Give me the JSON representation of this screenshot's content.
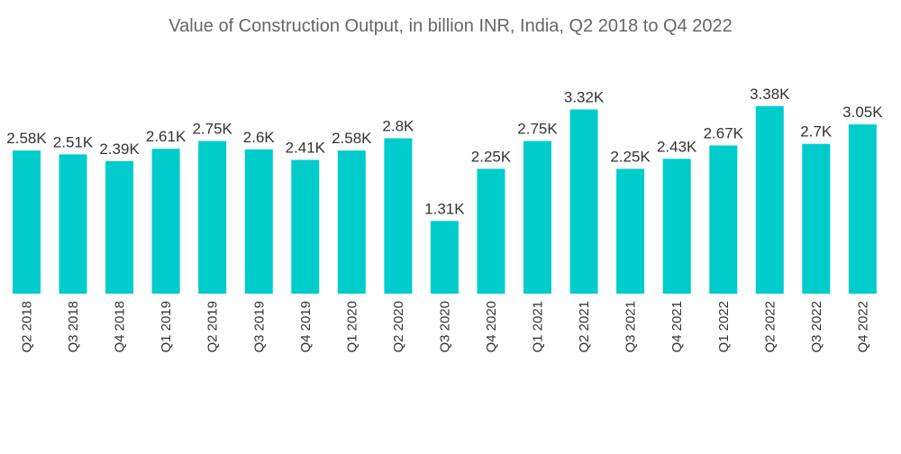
{
  "chart_data": {
    "type": "bar",
    "title": "Value of Construction Output, in billion INR, India, Q2 2018 to Q4 2022",
    "xlabel": "",
    "ylabel": "",
    "ylim": [
      0,
      3.6
    ],
    "grid": false,
    "bar_color": "#00cccc",
    "categories": [
      "Q2 2018",
      "Q3 2018",
      "Q4 2018",
      "Q1 2019",
      "Q2 2019",
      "Q3 2019",
      "Q4 2019",
      "Q1 2020",
      "Q2 2020",
      "Q3 2020",
      "Q4 2020",
      "Q1 2021",
      "Q2 2021",
      "Q3 2021",
      "Q4 2021",
      "Q1 2022",
      "Q2 2022",
      "Q3 2022",
      "Q4 2022"
    ],
    "values": [
      2.58,
      2.51,
      2.39,
      2.61,
      2.75,
      2.6,
      2.41,
      2.58,
      2.8,
      1.31,
      2.25,
      2.75,
      3.32,
      2.25,
      2.43,
      2.67,
      3.38,
      2.7,
      3.05
    ],
    "data_labels": [
      "2.58K",
      "2.51K",
      "2.39K",
      "2.61K",
      "2.75K",
      "2.6K",
      "2.41K",
      "2.58K",
      "2.8K",
      "1.31K",
      "2.25K",
      "2.75K",
      "3.32K",
      "2.25K",
      "2.43K",
      "2.67K",
      "3.38K",
      "2.7K",
      "3.05K"
    ]
  }
}
